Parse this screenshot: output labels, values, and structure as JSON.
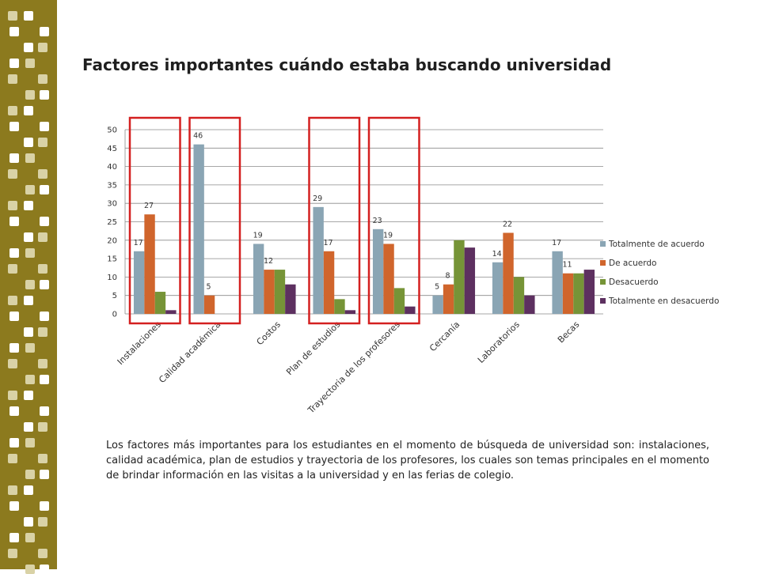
{
  "slide": {
    "title": "Factores importantes cuándo estaba buscando universidad",
    "paragraph": "Los factores más importantes para los estudiantes en el momento de búsqueda de universidad son: instalaciones, calidad académica, plan de estudios y trayectoria de los profesores, los cuales son temas principales en el momento de brindar información en las visitas a la universidad y en las ferias de colegio."
  },
  "colors": {
    "band": "#8c7a1e",
    "band_squares": [
      "#d9d2a6",
      "#ffffff"
    ],
    "highlight_box": "#d42020"
  },
  "chart_data": {
    "type": "bar",
    "categories": [
      "Instalaciones",
      "Calidad académica",
      "Costos",
      "Plan de estudios",
      "Trayectoria de los profesores",
      "Cercanía",
      "Laboratorios",
      "Becas"
    ],
    "series": [
      {
        "name": "Totalmente de acuerdo",
        "color": "#8aa5b4",
        "values": [
          17,
          46,
          19,
          29,
          23,
          5,
          14,
          17
        ]
      },
      {
        "name": "De acuerdo",
        "color": "#d0652c",
        "values": [
          27,
          5,
          12,
          17,
          19,
          8,
          22,
          11
        ]
      },
      {
        "name": "Desacuerdo",
        "color": "#769437",
        "values": [
          6,
          0,
          12,
          4,
          7,
          20,
          10,
          11
        ]
      },
      {
        "name": "Totalmente en desacuerdo",
        "color": "#5d3060",
        "values": [
          1,
          0,
          8,
          1,
          2,
          18,
          5,
          12
        ]
      }
    ],
    "data_labels": [
      {
        "category": 0,
        "series": 0,
        "value": 17
      },
      {
        "category": 0,
        "series": 1,
        "value": 27
      },
      {
        "category": 1,
        "series": 0,
        "value": 46
      },
      {
        "category": 1,
        "series": 1,
        "value": 5
      },
      {
        "category": 2,
        "series": 0,
        "value": 19
      },
      {
        "category": 2,
        "series": 1,
        "value": 12
      },
      {
        "category": 3,
        "series": 0,
        "value": 29
      },
      {
        "category": 3,
        "series": 1,
        "value": 17
      },
      {
        "category": 4,
        "series": 0,
        "value": 23
      },
      {
        "category": 4,
        "series": 1,
        "value": 19
      },
      {
        "category": 5,
        "series": 0,
        "value": 5
      },
      {
        "category": 5,
        "series": 1,
        "value": 8
      },
      {
        "category": 6,
        "series": 0,
        "value": 14
      },
      {
        "category": 6,
        "series": 1,
        "value": 22
      },
      {
        "category": 7,
        "series": 0,
        "value": 17
      },
      {
        "category": 7,
        "series": 1,
        "value": 11
      }
    ],
    "ylim": [
      0,
      50
    ],
    "yticks": [
      0,
      5,
      10,
      15,
      20,
      25,
      30,
      35,
      40,
      45,
      50
    ],
    "grid": true,
    "legend_position": "right",
    "highlighted_categories": [
      0,
      1,
      3,
      4
    ]
  }
}
